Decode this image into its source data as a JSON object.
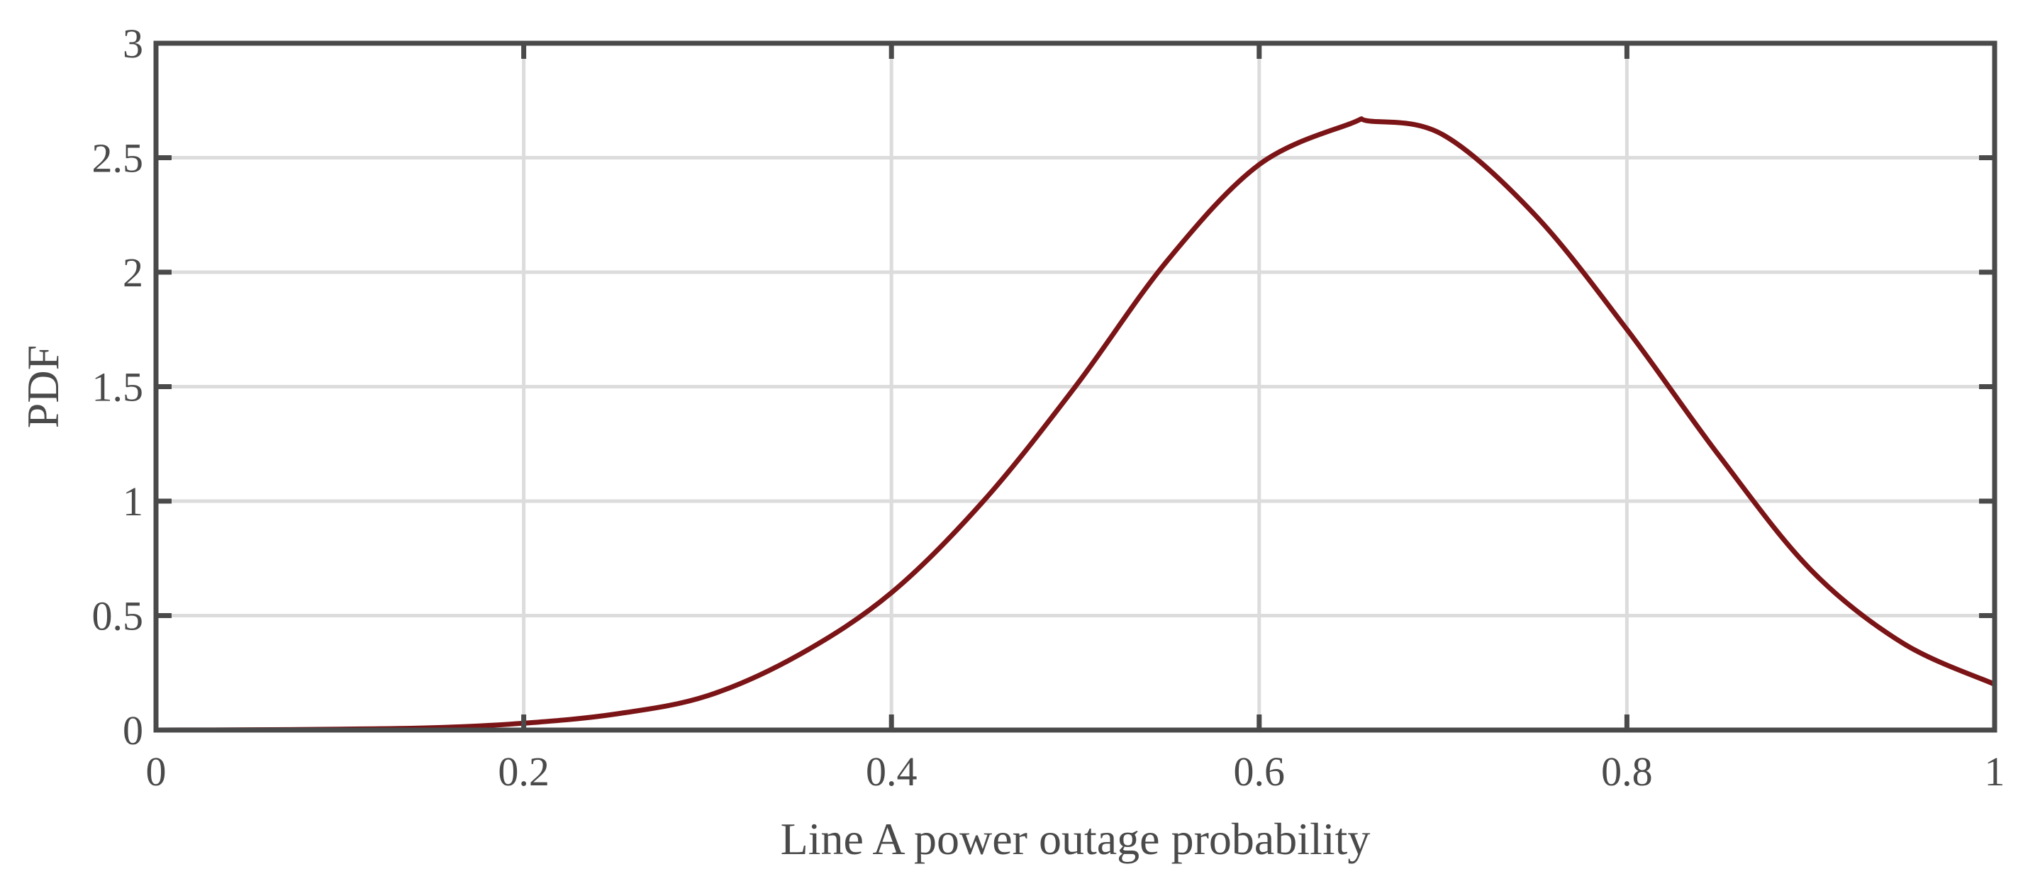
{
  "chart_data": {
    "type": "line",
    "title": "",
    "xlabel": "Line A power outage probability",
    "ylabel": "PDF",
    "xlim": [
      0,
      1
    ],
    "ylim": [
      0,
      3
    ],
    "xticks": [
      0,
      0.2,
      0.4,
      0.6,
      0.8,
      1
    ],
    "xtick_labels": [
      "0",
      "0.2",
      "0.4",
      "0.6",
      "0.8",
      "1"
    ],
    "yticks": [
      0,
      0.5,
      1,
      1.5,
      2,
      2.5,
      3
    ],
    "ytick_labels": [
      "0",
      "0.5",
      "1",
      "1.5",
      "2",
      "2.5",
      "3"
    ],
    "grid": true,
    "legend": "none",
    "line_color": "#7b1416",
    "series": [
      {
        "x": [
          0,
          0.05,
          0.1,
          0.15,
          0.2,
          0.25,
          0.3,
          0.35,
          0.4,
          0.45,
          0.5,
          0.55,
          0.6,
          0.65,
          0.66,
          0.7,
          0.75,
          0.8,
          0.85,
          0.9,
          0.95,
          1
        ],
        "values": [
          0,
          0.001,
          0.004,
          0.01,
          0.03,
          0.07,
          0.15,
          0.33,
          0.6,
          1.0,
          1.5,
          2.05,
          2.47,
          2.65,
          2.66,
          2.6,
          2.25,
          1.75,
          1.2,
          0.7,
          0.38,
          0.2
        ]
      }
    ]
  }
}
